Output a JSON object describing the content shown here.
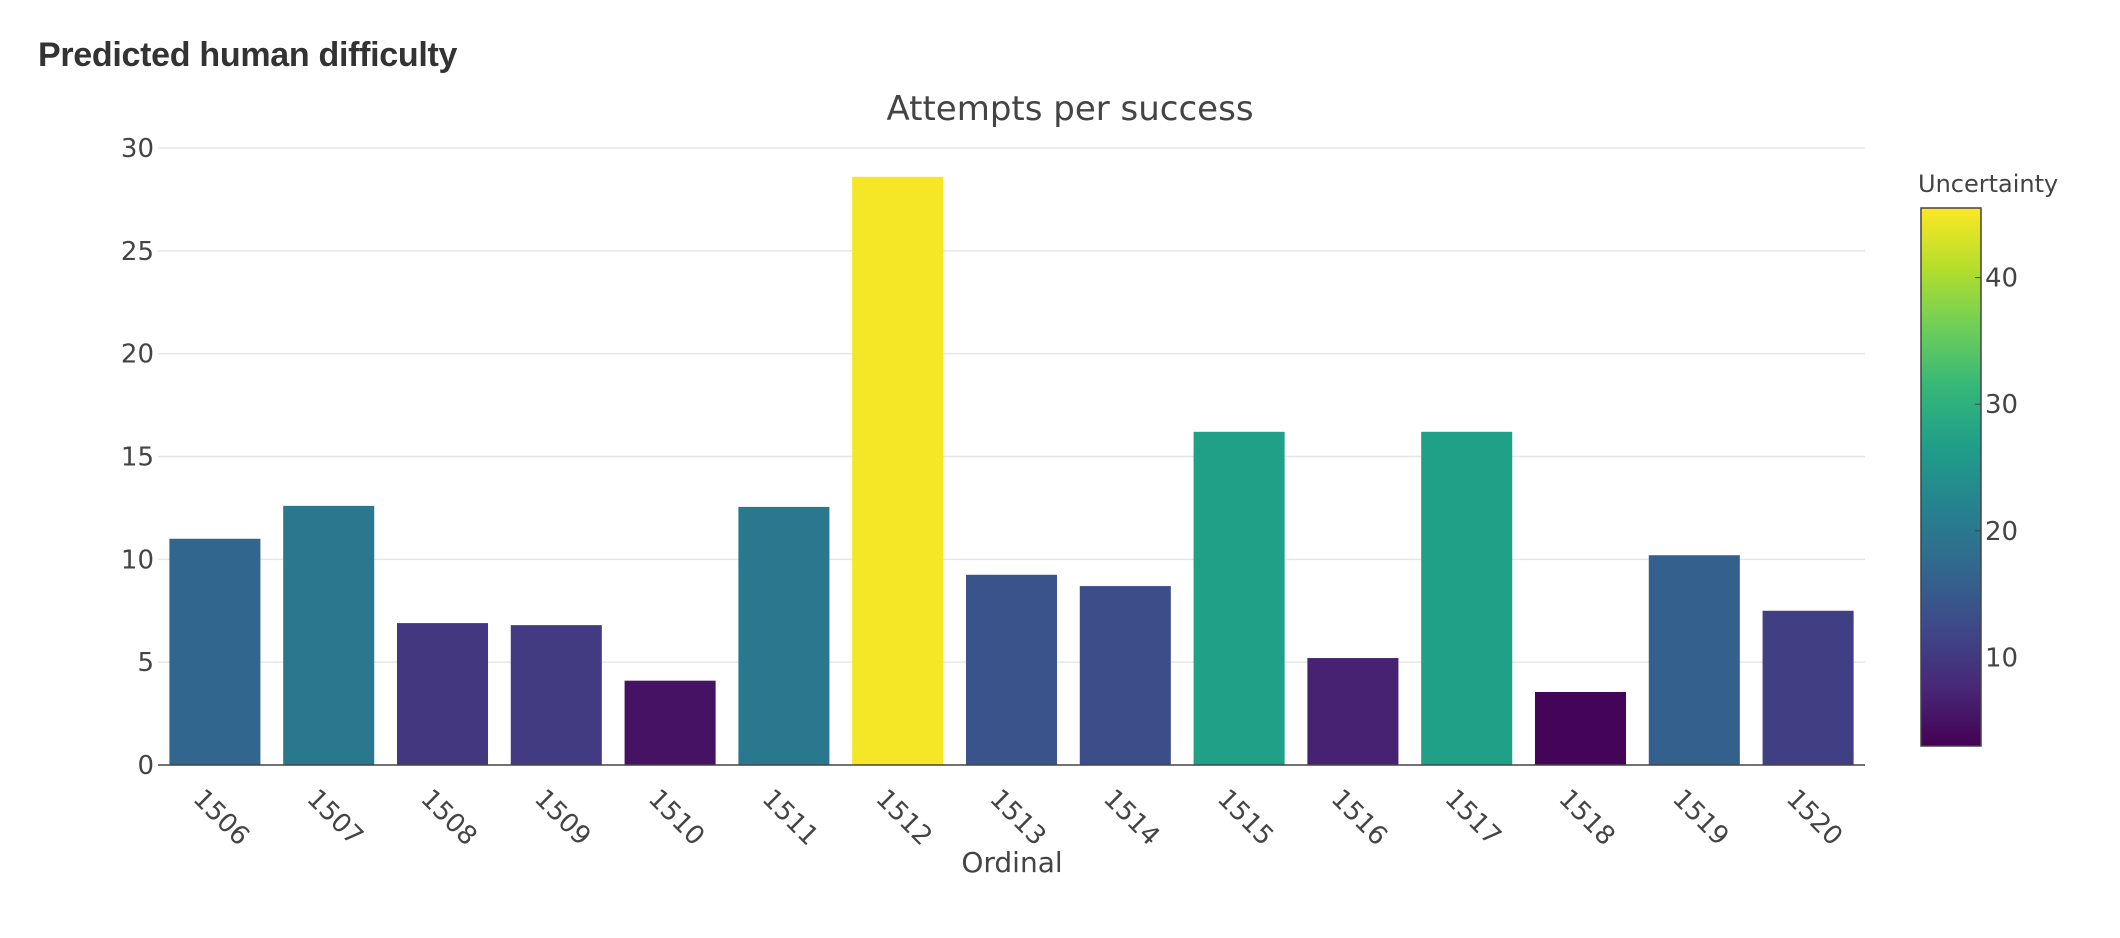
{
  "page": {
    "heading": "Predicted human difficulty"
  },
  "chart_data": {
    "type": "bar",
    "title": "Attempts per success",
    "xlabel": "Ordinal",
    "ylabel": "",
    "ylim": [
      0,
      30
    ],
    "yticks": [
      0,
      5,
      10,
      15,
      20,
      25,
      30
    ],
    "grid": true,
    "categories": [
      "1506",
      "1507",
      "1508",
      "1509",
      "1510",
      "1511",
      "1512",
      "1513",
      "1514",
      "1515",
      "1516",
      "1517",
      "1518",
      "1519",
      "1520"
    ],
    "values": [
      11.0,
      12.6,
      6.9,
      6.8,
      4.1,
      12.55,
      28.6,
      9.25,
      8.7,
      16.2,
      5.2,
      16.2,
      3.55,
      10.2,
      7.5
    ],
    "uncertainty": [
      17,
      20,
      10,
      10.5,
      5,
      20,
      45,
      14,
      13,
      27,
      7,
      27,
      3.5,
      16,
      11
    ],
    "colorbar": {
      "title": "Uncertainty",
      "range": [
        3,
        45.5
      ],
      "ticks": [
        10,
        20,
        30,
        40
      ],
      "colorscale": "viridis"
    }
  }
}
